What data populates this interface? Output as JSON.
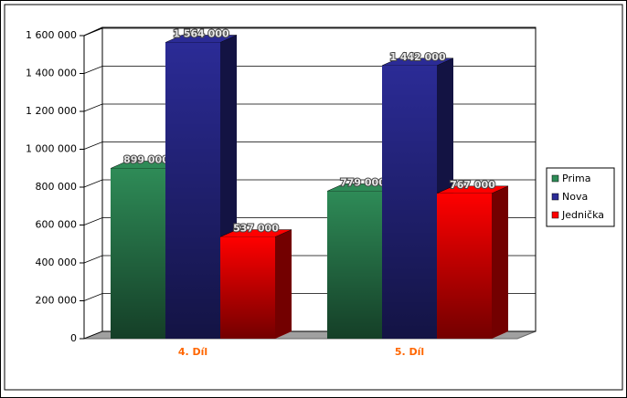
{
  "chart_data": {
    "type": "bar3d",
    "categories": [
      "4. Díl",
      "5. Díl"
    ],
    "series": [
      {
        "name": "Prima",
        "color": "#2e8b57",
        "values": [
          899000,
          779000
        ],
        "value_labels": [
          "899 000",
          "779 000"
        ]
      },
      {
        "name": "Nova",
        "color": "#2b2b96",
        "values": [
          1564000,
          1442000
        ],
        "value_labels": [
          "1 564 000",
          "1 442 000"
        ]
      },
      {
        "name": "Jednička",
        "color": "#ff0000",
        "values": [
          537000,
          767000
        ],
        "value_labels": [
          "537 000",
          "767 000"
        ]
      }
    ],
    "ylim": [
      0,
      1600000
    ],
    "yticks": [
      0,
      {
        "value": 200000,
        "label": "200 000"
      },
      {
        "value": 400000,
        "label": "400 000"
      },
      {
        "value": 600000,
        "label": "600 000"
      },
      {
        "value": 800000,
        "label": "800 000"
      },
      {
        "value": 1000000,
        "label": "1 000 000"
      },
      {
        "value": 1200000,
        "label": "1 200 000"
      },
      {
        "value": 1400000,
        "label": "1 400 000"
      },
      {
        "value": 1600000,
        "label": "1 600 000"
      }
    ],
    "grid": true,
    "legend": "right"
  }
}
